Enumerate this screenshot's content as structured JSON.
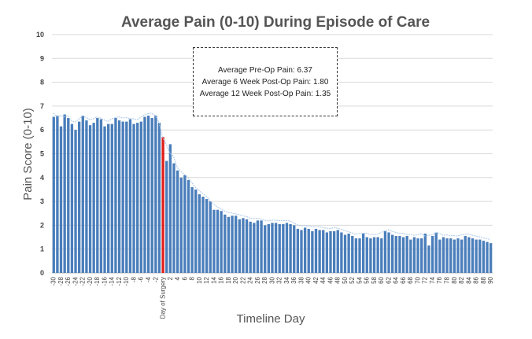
{
  "chart_data": {
    "type": "bar",
    "title": "Average Pain (0-10) During Episode of Care",
    "xlabel": "Timeline Day",
    "ylabel": "Pain Score (0-10)",
    "ylim": [
      0,
      10
    ],
    "yticks": [
      0,
      1,
      2,
      3,
      4,
      5,
      6,
      7,
      8,
      9,
      10
    ],
    "grid": true,
    "x_start": -30,
    "x_end": 90,
    "surgery_label": "Day of Surgery",
    "colors": {
      "bar": "#4a7ebb",
      "surgery_bar": "#e0201b",
      "trend": "#a9c6e8",
      "grid": "#d9d9d9"
    },
    "trendline": "moving average (dotted)",
    "values": [
      6.55,
      6.6,
      6.15,
      6.65,
      6.5,
      6.25,
      6.0,
      6.35,
      6.6,
      6.4,
      6.2,
      6.3,
      6.5,
      6.45,
      6.15,
      6.25,
      6.25,
      6.5,
      6.4,
      6.35,
      6.35,
      6.45,
      6.25,
      6.3,
      6.35,
      6.55,
      6.6,
      6.5,
      6.6,
      6.3,
      5.7,
      4.7,
      5.4,
      4.6,
      4.3,
      4.0,
      4.1,
      3.9,
      3.6,
      3.5,
      3.3,
      3.2,
      3.1,
      3.0,
      2.65,
      2.65,
      2.6,
      2.45,
      2.35,
      2.4,
      2.4,
      2.25,
      2.3,
      2.25,
      2.15,
      2.1,
      2.2,
      2.2,
      2.0,
      2.05,
      2.1,
      2.1,
      2.05,
      2.05,
      2.1,
      2.05,
      2.0,
      1.85,
      1.8,
      1.9,
      1.85,
      1.75,
      1.85,
      1.8,
      1.8,
      1.7,
      1.75,
      1.75,
      1.8,
      1.7,
      1.6,
      1.65,
      1.55,
      1.45,
      1.45,
      1.65,
      1.5,
      1.45,
      1.5,
      1.5,
      1.45,
      1.75,
      1.7,
      1.6,
      1.55,
      1.55,
      1.5,
      1.55,
      1.4,
      1.5,
      1.45,
      1.45,
      1.65,
      1.15,
      1.55,
      1.7,
      1.4,
      1.5,
      1.45,
      1.45,
      1.4,
      1.45,
      1.4,
      1.55,
      1.5,
      1.45,
      1.4,
      1.4,
      1.35,
      1.3,
      1.25
    ]
  },
  "annotation": {
    "lines": [
      "Average Pre-Op Pain: 6.37",
      "Average 6 Week Post-Op Pain: 1.80",
      "Average 12 Week Post-Op Pain: 1.35"
    ]
  }
}
